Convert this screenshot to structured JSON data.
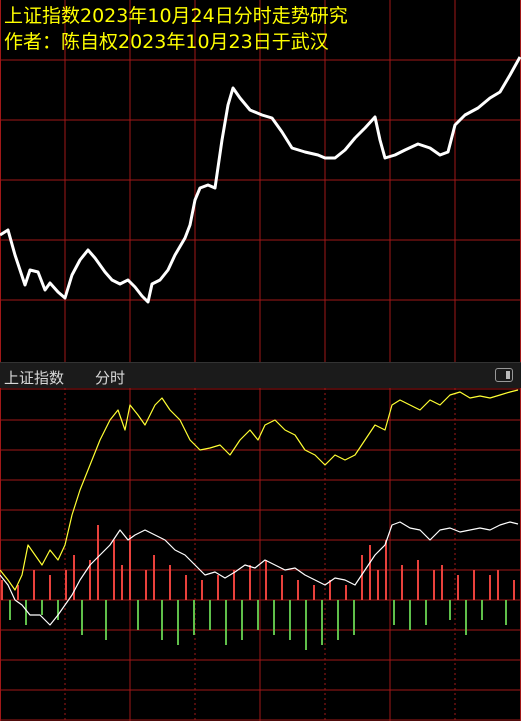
{
  "chart_data": [
    {
      "type": "line",
      "title": "上证指数2023年10月24日分时走势研究",
      "subtitle": "作者：陈自权2023年10月23日于武汉",
      "title_color": "#ffff00",
      "xlim": [
        0,
        520
      ],
      "ylim": [
        0,
        362
      ],
      "series": [
        {
          "color": "#ffffff",
          "x": [
            0,
            8,
            15,
            25,
            30,
            38,
            45,
            50,
            58,
            65,
            72,
            80,
            88,
            95,
            105,
            112,
            120,
            128,
            135,
            142,
            148,
            152,
            160,
            168,
            175,
            185,
            190,
            195,
            200,
            208,
            215,
            222,
            228,
            233,
            240,
            250,
            262,
            272,
            282,
            292,
            305,
            318,
            325,
            335,
            345,
            355,
            365,
            375,
            380,
            385,
            395,
            405,
            418,
            430,
            440,
            448,
            455,
            465,
            478,
            490,
            500,
            510,
            520
          ],
          "values": [
            127,
            132,
            107,
            77,
            92,
            90,
            72,
            79,
            70,
            64,
            87,
            102,
            112,
            104,
            90,
            82,
            78,
            82,
            75,
            66,
            60,
            78,
            82,
            92,
            107,
            124,
            137,
            162,
            174,
            177,
            174,
            222,
            257,
            274,
            264,
            252,
            247,
            244,
            230,
            214,
            210,
            207,
            204,
            204,
            212,
            224,
            234,
            245,
            222,
            204,
            207,
            212,
            218,
            214,
            207,
            210,
            237,
            247,
            254,
            264,
            270,
            287,
            305
          ]
        }
      ]
    },
    {
      "type": "combo",
      "header": "上证指数",
      "mode": "分时",
      "xlim": [
        0,
        520
      ],
      "ylim": [
        -121,
        212
      ],
      "series": [
        {
          "kind": "line",
          "color": "#ffff33",
          "x": [
            0,
            8,
            15,
            22,
            28,
            35,
            42,
            50,
            58,
            65,
            72,
            80,
            90,
            100,
            110,
            118,
            125,
            130,
            138,
            145,
            155,
            162,
            170,
            180,
            190,
            200,
            210,
            220,
            230,
            240,
            250,
            258,
            265,
            275,
            285,
            295,
            305,
            315,
            325,
            335,
            345,
            355,
            365,
            375,
            385,
            392,
            400,
            410,
            420,
            430,
            440,
            450,
            460,
            470,
            480,
            490,
            500,
            510,
            518
          ],
          "values": [
            30,
            20,
            10,
            25,
            55,
            45,
            35,
            50,
            40,
            55,
            85,
            110,
            135,
            160,
            180,
            190,
            170,
            195,
            185,
            175,
            195,
            202,
            190,
            180,
            160,
            150,
            152,
            155,
            145,
            160,
            170,
            160,
            175,
            180,
            170,
            165,
            150,
            145,
            135,
            145,
            140,
            145,
            160,
            175,
            170,
            195,
            200,
            195,
            190,
            200,
            195,
            205,
            208,
            202,
            204,
            202,
            205,
            208,
            210
          ]
        },
        {
          "kind": "line",
          "color": "#ffffff",
          "x": [
            0,
            8,
            15,
            22,
            30,
            40,
            50,
            58,
            65,
            72,
            80,
            90,
            100,
            110,
            120,
            128,
            135,
            145,
            155,
            165,
            175,
            185,
            195,
            205,
            215,
            225,
            235,
            245,
            255,
            265,
            275,
            285,
            295,
            305,
            315,
            325,
            335,
            345,
            355,
            365,
            375,
            385,
            392,
            400,
            410,
            420,
            430,
            440,
            450,
            460,
            470,
            480,
            490,
            500,
            510,
            518
          ],
          "values": [
            25,
            15,
            0,
            -5,
            -15,
            -15,
            -25,
            -15,
            -5,
            5,
            20,
            35,
            45,
            55,
            70,
            60,
            65,
            70,
            65,
            60,
            50,
            45,
            35,
            25,
            28,
            22,
            28,
            35,
            32,
            40,
            35,
            30,
            32,
            25,
            20,
            15,
            22,
            20,
            15,
            30,
            45,
            55,
            75,
            78,
            72,
            70,
            60,
            70,
            72,
            68,
            70,
            72,
            70,
            75,
            78,
            76
          ]
        },
        {
          "kind": "bar",
          "up_color": "#e8413c",
          "down_color": "#5fbf4a",
          "x": [
            2,
            10,
            18,
            26,
            34,
            42,
            50,
            58,
            66,
            74,
            82,
            90,
            98,
            106,
            114,
            122,
            130,
            138,
            146,
            154,
            162,
            170,
            178,
            186,
            194,
            202,
            210,
            218,
            226,
            234,
            242,
            250,
            258,
            266,
            274,
            282,
            290,
            298,
            306,
            314,
            322,
            330,
            338,
            346,
            354,
            362,
            370,
            378,
            386,
            394,
            402,
            410,
            418,
            426,
            434,
            442,
            450,
            458,
            466,
            474,
            482,
            490,
            498,
            506,
            514
          ],
          "values": [
            20,
            -20,
            15,
            -25,
            30,
            -15,
            25,
            -20,
            30,
            45,
            -35,
            40,
            75,
            -40,
            60,
            35,
            65,
            -30,
            30,
            45,
            -40,
            35,
            -45,
            25,
            -35,
            20,
            -30,
            25,
            -45,
            30,
            -40,
            35,
            -30,
            40,
            -35,
            25,
            -40,
            20,
            -50,
            15,
            -45,
            20,
            -40,
            15,
            -35,
            45,
            55,
            30,
            60,
            -25,
            35,
            -30,
            40,
            -25,
            30,
            35,
            -20,
            25,
            -35,
            30,
            -20,
            25,
            30,
            -25,
            20
          ]
        }
      ]
    }
  ]
}
